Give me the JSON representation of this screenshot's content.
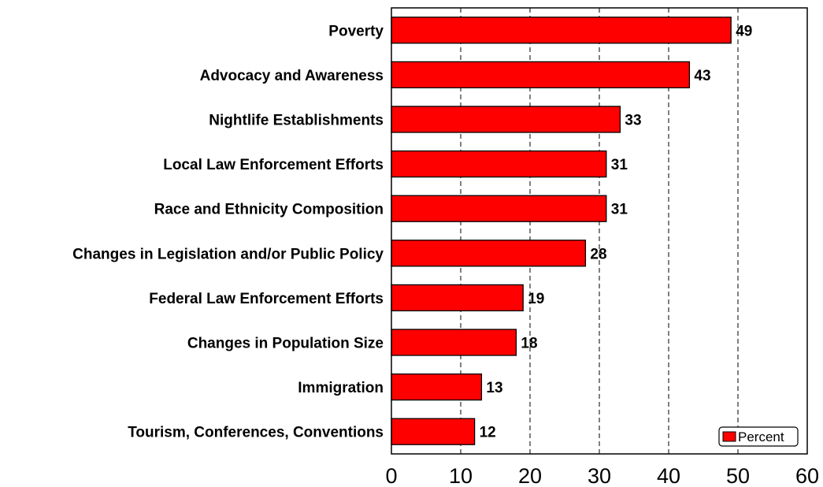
{
  "chart_data": {
    "type": "bar",
    "orientation": "horizontal",
    "categories": [
      "Poverty",
      "Advocacy and Awareness",
      "Nightlife Establishments",
      "Local Law Enforcement Efforts",
      "Race and Ethnicity Composition",
      "Changes in Legislation and/or Public Policy",
      "Federal Law Enforcement Efforts",
      "Changes in Population Size",
      "Immigration",
      "Tourism, Conferences, Conventions"
    ],
    "series": [
      {
        "name": "Percent",
        "values": [
          49,
          43,
          33,
          31,
          31,
          28,
          19,
          18,
          13,
          12
        ]
      }
    ],
    "xlim": [
      0,
      60
    ],
    "xticks": [
      0,
      10,
      20,
      30,
      40,
      50,
      60
    ],
    "title": "",
    "xlabel": "",
    "ylabel": "",
    "grid": "vertical dashed",
    "legend_position": "bottom-right",
    "colors": {
      "bar": "#ff0000",
      "bar_stroke": "#000000",
      "grid": "#000000"
    }
  }
}
